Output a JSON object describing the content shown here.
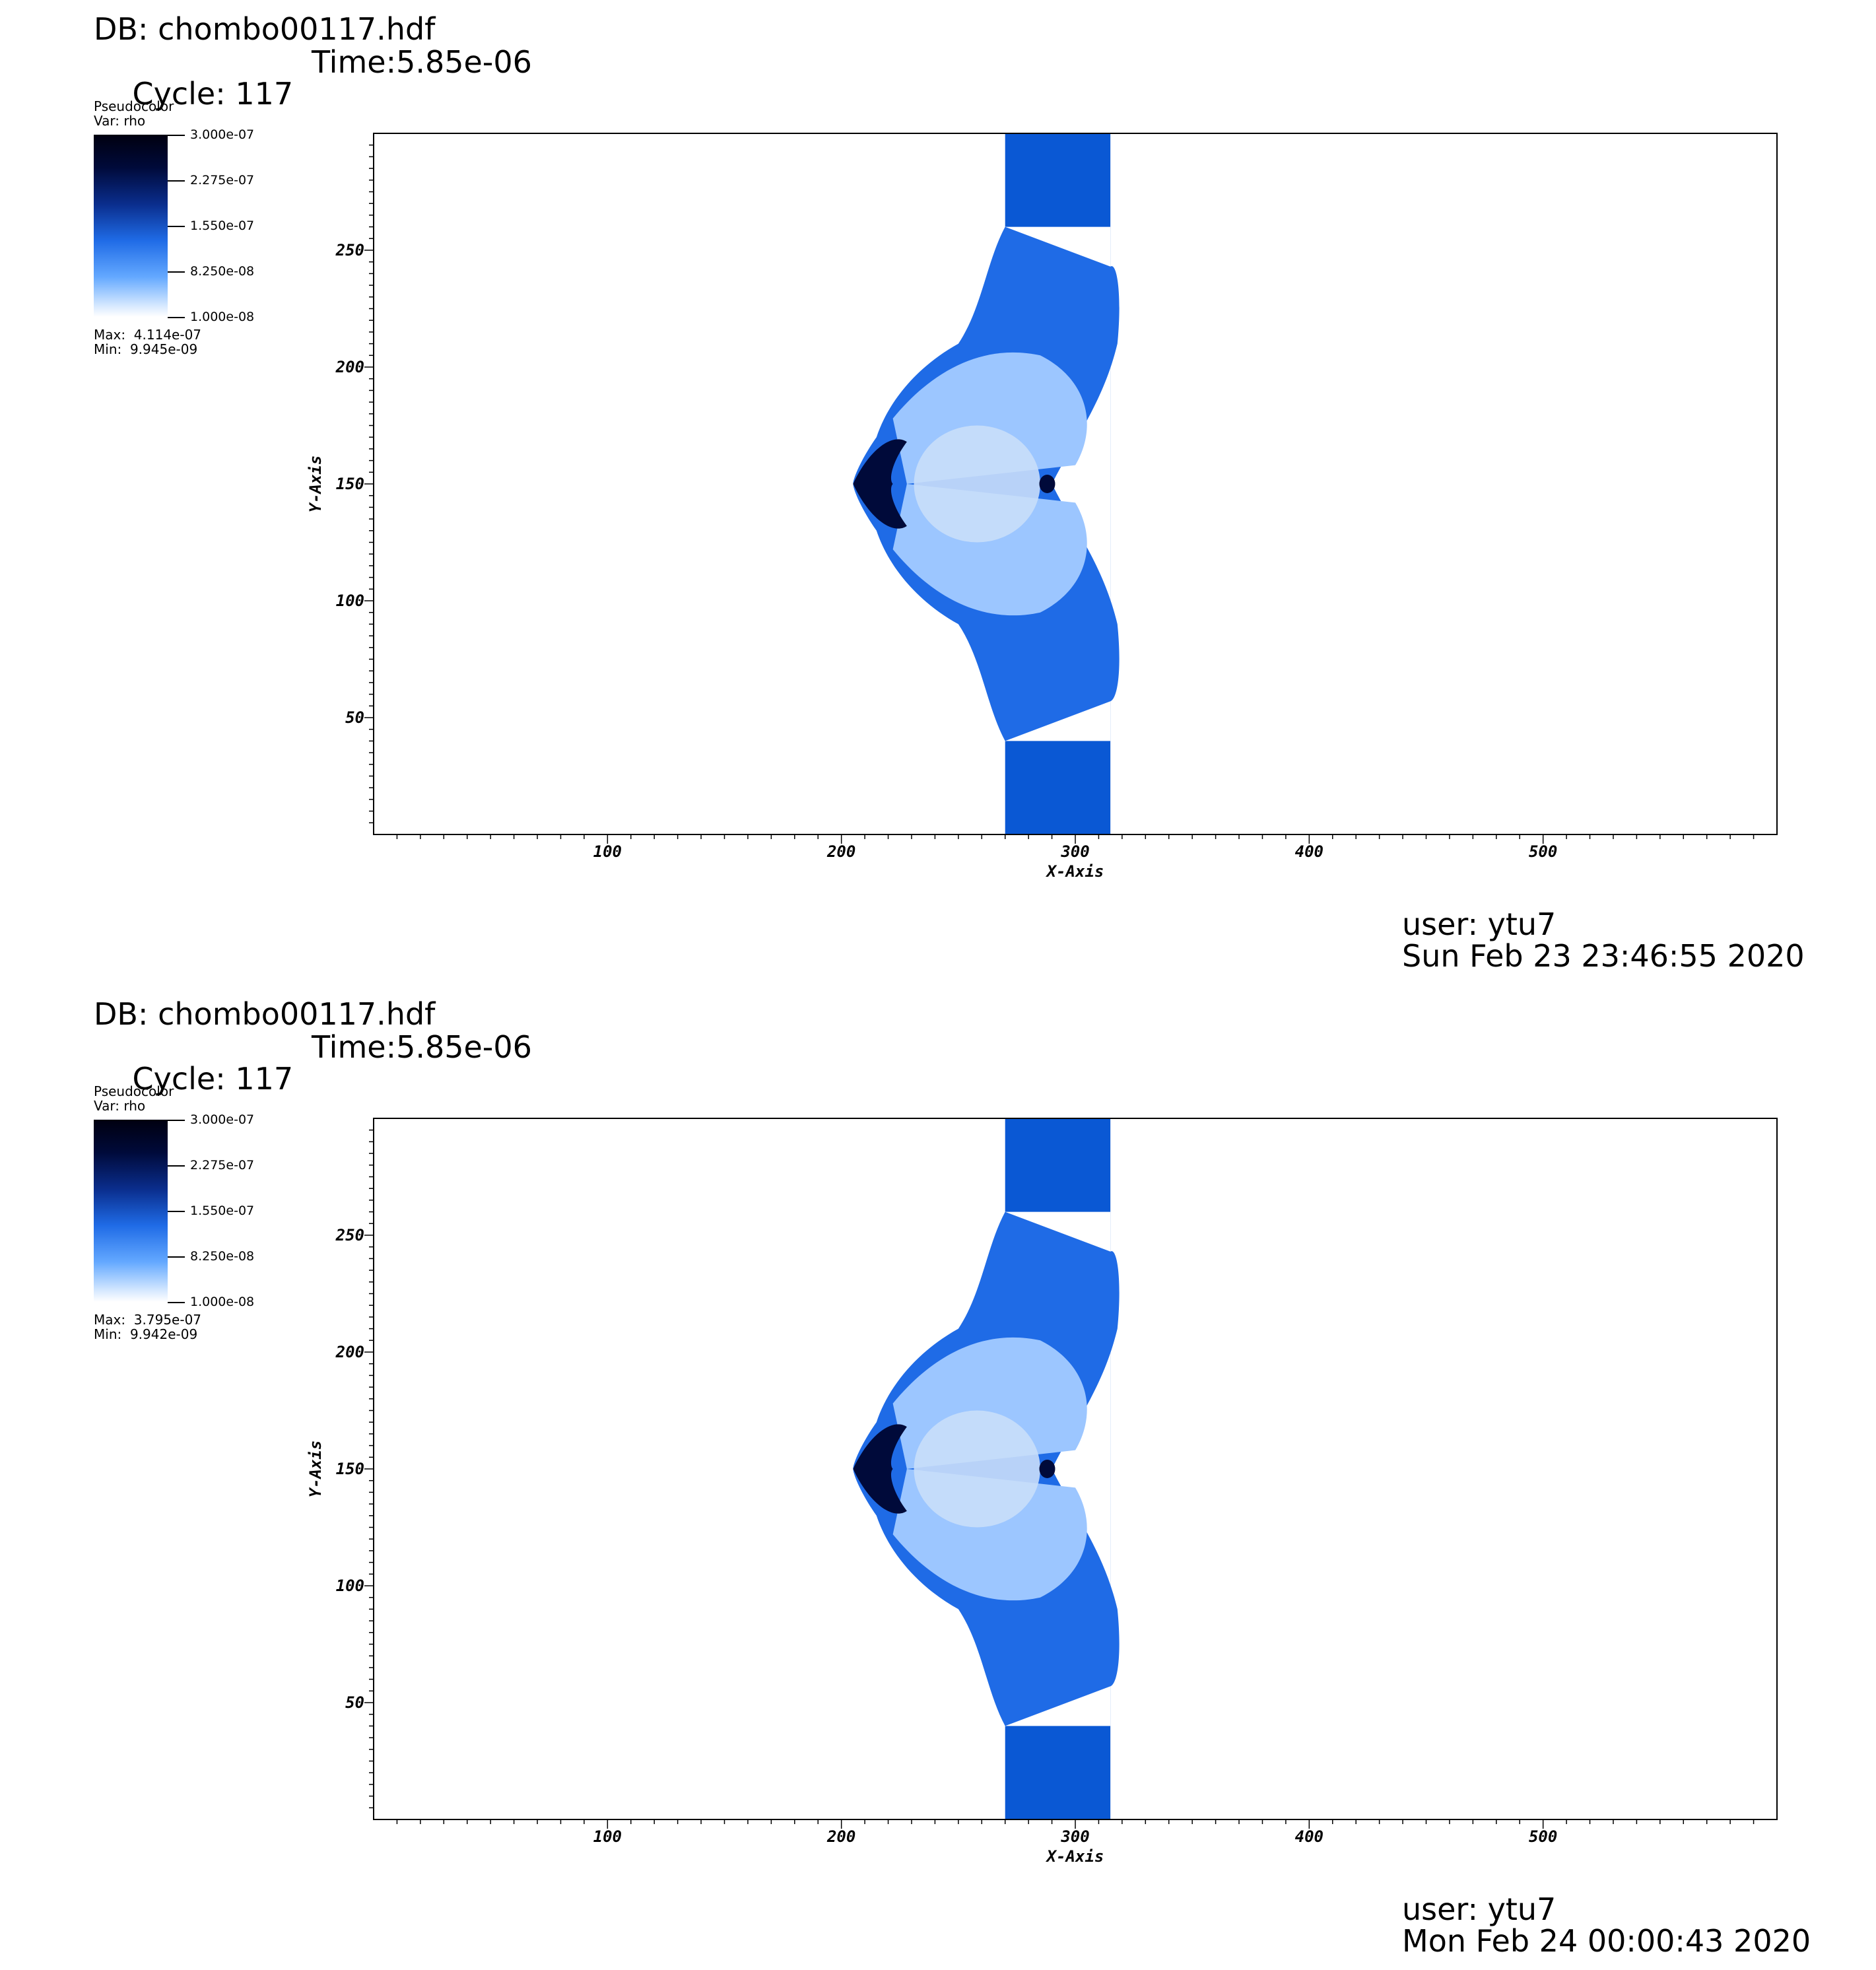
{
  "panels": [
    {
      "db_title": "DB: chombo00117.hdf",
      "cycle": "Cycle: 117",
      "time": "Time:5.85e-06",
      "legend": {
        "title": "Pseudocolor",
        "var": "Var: rho",
        "ticks": [
          "3.000e-07",
          "2.275e-07",
          "1.550e-07",
          "8.250e-08",
          "1.000e-08"
        ],
        "max": "Max:  4.114e-07",
        "min": "Min:  9.945e-09"
      },
      "user": "user: ytu7",
      "date": "Sun Feb 23 23:46:55 2020"
    },
    {
      "db_title": "DB: chombo00117.hdf",
      "cycle": "Cycle: 117",
      "time": "Time:5.85e-06",
      "legend": {
        "title": "Pseudocolor",
        "var": "Var: rho",
        "ticks": [
          "3.000e-07",
          "2.275e-07",
          "1.550e-07",
          "8.250e-08",
          "1.000e-08"
        ],
        "max": "Max:  3.795e-07",
        "min": "Min:  9.942e-09"
      },
      "user": "user: ytu7",
      "date": "Mon Feb 24 00:00:43 2020"
    }
  ],
  "chart_data": [
    {
      "type": "heatmap",
      "title": "DB: chombo00117.hdf",
      "xlabel": "X-Axis",
      "ylabel": "Y-Axis",
      "xlim": [
        0,
        600
      ],
      "ylim": [
        0,
        300
      ],
      "xticks": [
        100,
        200,
        300,
        400,
        500
      ],
      "yticks": [
        50,
        100,
        150,
        200,
        250
      ],
      "colorbar": {
        "var": "rho",
        "range": [
          1e-08,
          3e-07
        ],
        "scale": "linear"
      },
      "max": 4.114e-07,
      "min": 9.945e-09,
      "colors": {
        "band": "#0a58d4",
        "dark": "#000a3a",
        "mid": "#1f6be6",
        "light": "#9cc6ff"
      }
    },
    {
      "type": "heatmap",
      "title": "DB: chombo00117.hdf",
      "xlabel": "X-Axis",
      "ylabel": "Y-Axis",
      "xlim": [
        0,
        600
      ],
      "ylim": [
        0,
        300
      ],
      "xticks": [
        100,
        200,
        300,
        400,
        500
      ],
      "yticks": [
        50,
        100,
        150,
        200,
        250
      ],
      "colorbar": {
        "var": "rho",
        "range": [
          1e-08,
          3e-07
        ],
        "scale": "linear"
      },
      "max": 3.795e-07,
      "min": 9.942e-09,
      "colors": {
        "band": "#0a58d4",
        "dark": "#000a3a",
        "mid": "#1f6be6",
        "light": "#9cc6ff"
      }
    }
  ]
}
